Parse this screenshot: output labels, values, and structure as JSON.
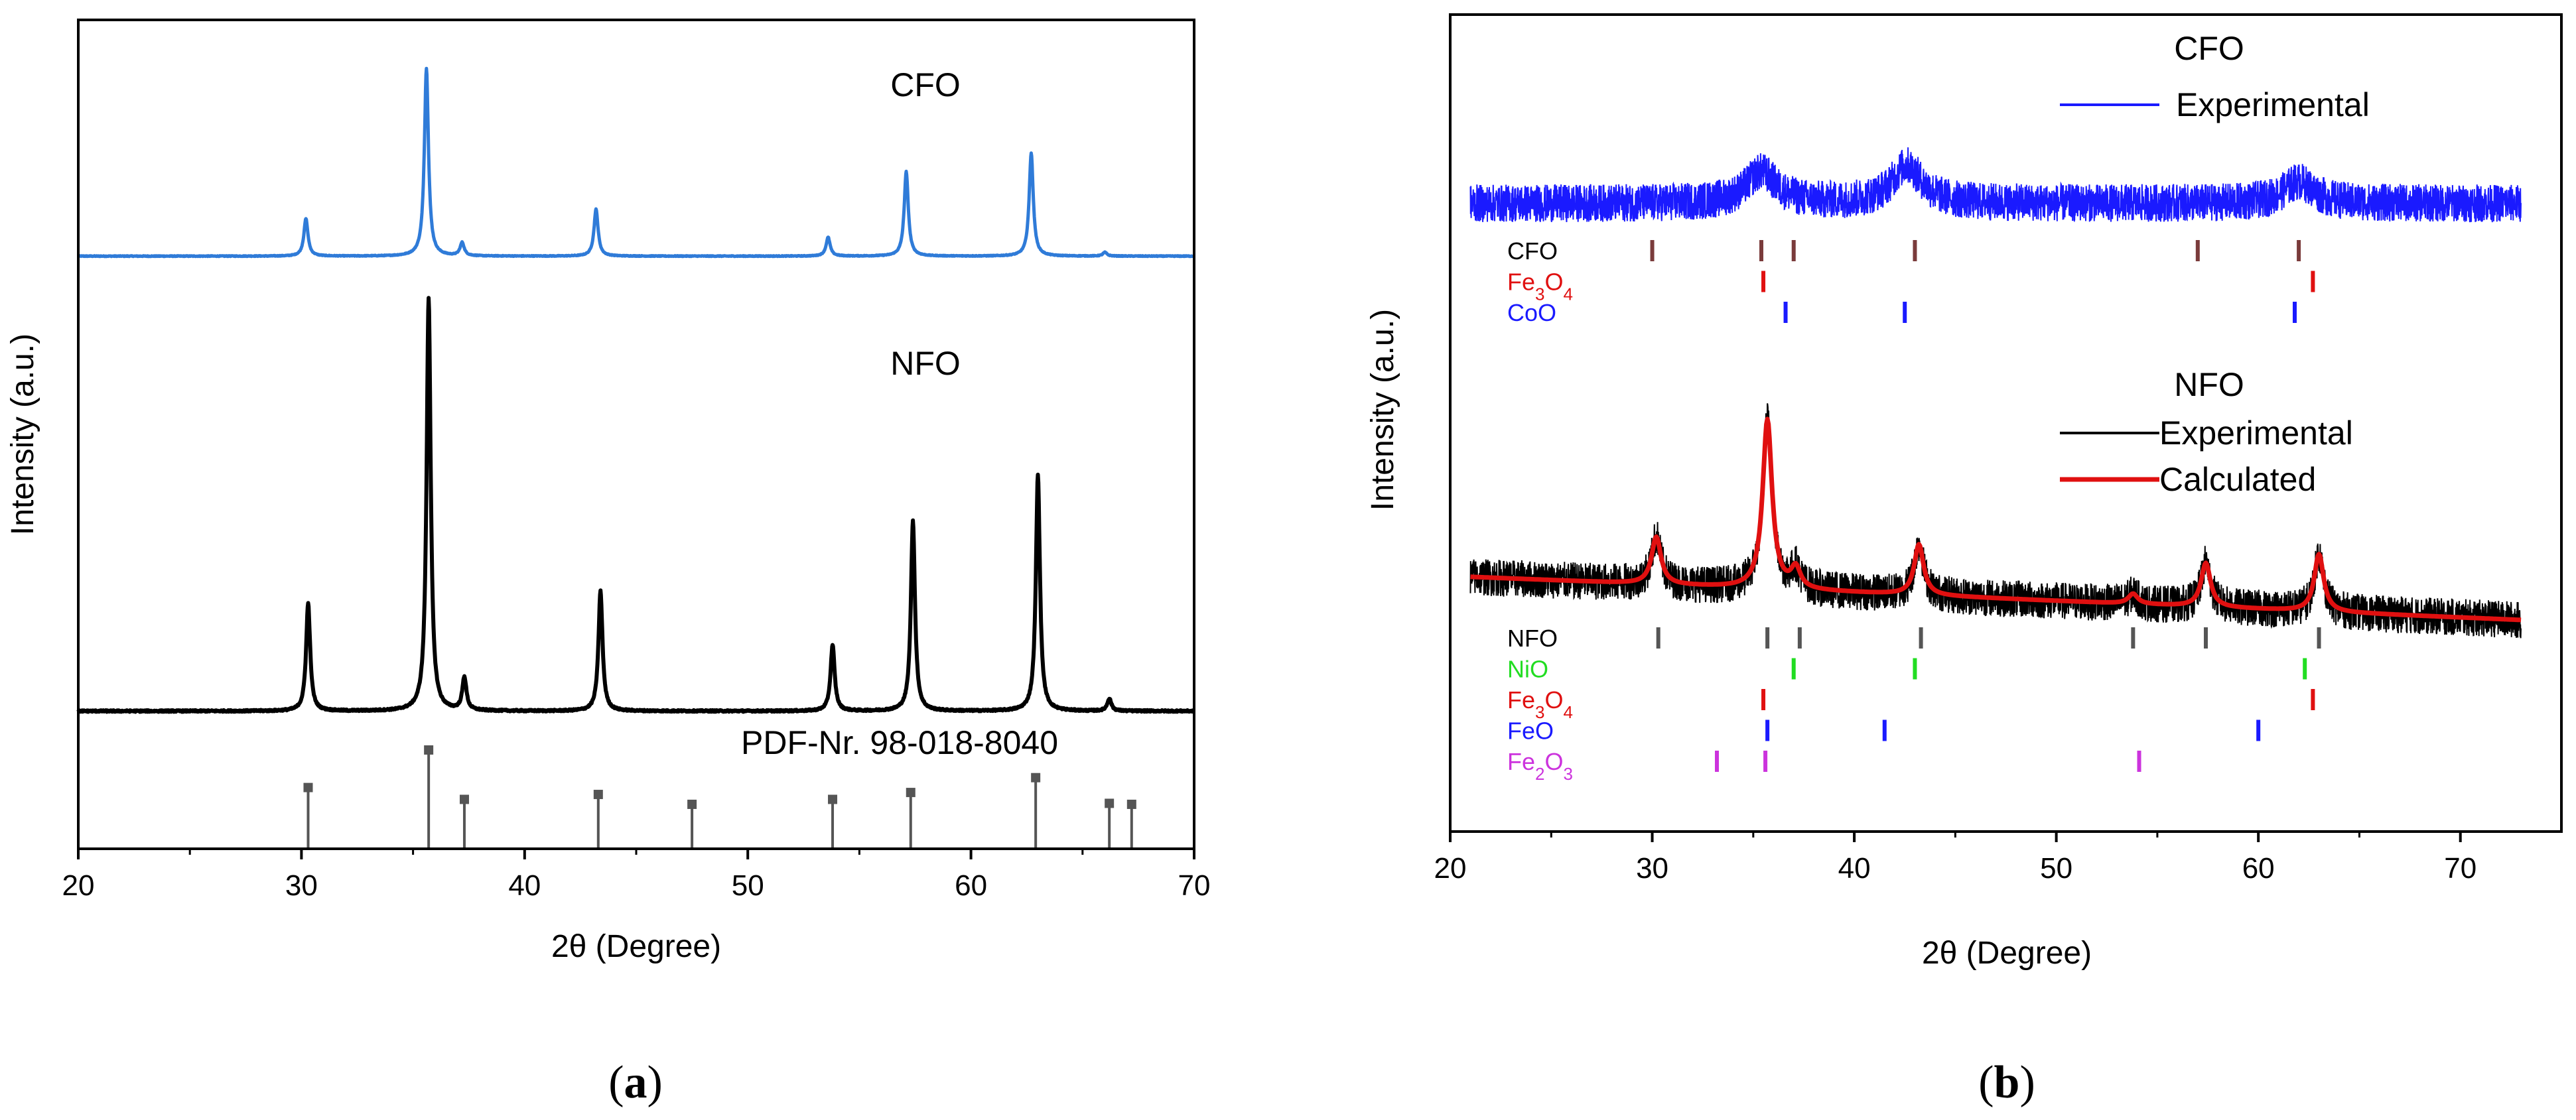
{
  "chart_data": [
    {
      "type": "line",
      "panel": "(a)",
      "panel_letter": "a",
      "xlabel": "2θ (Degree)",
      "ylabel": "Intensity (a.u.)",
      "xlim": [
        20,
        70
      ],
      "xticks": [
        20,
        30,
        40,
        50,
        60,
        70
      ],
      "series": [
        {
          "name": "CFO",
          "color": "#2f7bd8",
          "background": 0.05,
          "peaks": [
            {
              "x": 30.2,
              "h": 0.2
            },
            {
              "x": 35.6,
              "h": 1.0
            },
            {
              "x": 37.2,
              "h": 0.07
            },
            {
              "x": 43.2,
              "h": 0.25
            },
            {
              "x": 53.6,
              "h": 0.1
            },
            {
              "x": 57.1,
              "h": 0.45
            },
            {
              "x": 62.7,
              "h": 0.55
            },
            {
              "x": 66.0,
              "h": 0.02
            }
          ]
        },
        {
          "name": "NFO",
          "color": "#000000",
          "background": 0.02,
          "peaks": [
            {
              "x": 30.3,
              "h": 0.26
            },
            {
              "x": 35.7,
              "h": 1.0
            },
            {
              "x": 37.3,
              "h": 0.08
            },
            {
              "x": 43.4,
              "h": 0.29
            },
            {
              "x": 53.8,
              "h": 0.16
            },
            {
              "x": 57.4,
              "h": 0.46
            },
            {
              "x": 63.0,
              "h": 0.57
            },
            {
              "x": 66.2,
              "h": 0.03
            }
          ]
        }
      ],
      "reference": {
        "label": "PDF-Nr. 98-018-8040",
        "x": [
          30.3,
          35.7,
          37.3,
          43.3,
          47.5,
          53.8,
          57.3,
          62.9,
          66.2,
          67.2
        ],
        "h": [
          0.62,
          1.0,
          0.5,
          0.55,
          0.45,
          0.5,
          0.57,
          0.72,
          0.46,
          0.45
        ]
      }
    },
    {
      "type": "line",
      "panel": "(b)",
      "panel_letter": "b",
      "xlabel": "2θ (Degree)",
      "ylabel": "Intensity (a.u.)",
      "xlim": [
        20,
        75
      ],
      "xticks": [
        20,
        30,
        40,
        50,
        60,
        70
      ],
      "data_range": [
        21,
        73
      ],
      "series": [
        {
          "name": "CFO",
          "legend": "Experimental",
          "color": "#1a1aff",
          "humps": [
            {
              "x": 35.4,
              "h": 0.5
            },
            {
              "x": 42.6,
              "h": 0.6
            },
            {
              "x": 62.0,
              "h": 0.35
            }
          ]
        },
        {
          "name": "NFO",
          "legend": "Experimental",
          "fit_legend": "Calculated",
          "color": "#000000",
          "fit_color": "#e01010",
          "peaks": [
            {
              "x": 30.2,
              "h": 0.28
            },
            {
              "x": 35.7,
              "h": 1.0
            },
            {
              "x": 37.1,
              "h": 0.12
            },
            {
              "x": 43.2,
              "h": 0.3
            },
            {
              "x": 53.8,
              "h": 0.06
            },
            {
              "x": 57.4,
              "h": 0.26
            },
            {
              "x": 63.0,
              "h": 0.34
            }
          ]
        }
      ],
      "phase_groups": [
        {
          "group": "CFO",
          "phases": [
            {
              "name": "CFO",
              "color": "#7a3b3b",
              "label_color": "#000000",
              "positions": [
                30.0,
                35.4,
                37.0,
                43.0,
                57.0,
                62.0
              ]
            },
            {
              "name": "Fe3O4",
              "base": "Fe",
              "sub1": "3",
              "mid": "O",
              "sub2": "4",
              "color": "#e01010",
              "label_color": "#e01010",
              "positions": [
                35.5,
                62.7
              ]
            },
            {
              "name": "CoO",
              "color": "#1a1aff",
              "label_color": "#1a1aff",
              "positions": [
                36.6,
                42.5,
                61.8
              ]
            }
          ]
        },
        {
          "group": "NFO",
          "phases": [
            {
              "name": "NFO",
              "color": "#555555",
              "label_color": "#000000",
              "positions": [
                30.3,
                35.7,
                37.3,
                43.3,
                53.8,
                57.4,
                63.0
              ]
            },
            {
              "name": "NiO",
              "color": "#22dd22",
              "label_color": "#22dd22",
              "positions": [
                37.0,
                43.0,
                62.3
              ]
            },
            {
              "name": "Fe3O4",
              "base": "Fe",
              "sub1": "3",
              "mid": "O",
              "sub2": "4",
              "color": "#e01010",
              "label_color": "#e01010",
              "positions": [
                35.5,
                62.7
              ]
            },
            {
              "name": "FeO",
              "color": "#1a1aff",
              "label_color": "#1a1aff",
              "positions": [
                35.7,
                41.5,
                60.0
              ]
            },
            {
              "name": "Fe2O3",
              "base": "Fe",
              "sub1": "2",
              "mid": "O",
              "sub2": "3",
              "color": "#cc33dd",
              "label_color": "#cc33dd",
              "positions": [
                33.2,
                35.6,
                54.1
              ]
            }
          ]
        }
      ]
    }
  ]
}
